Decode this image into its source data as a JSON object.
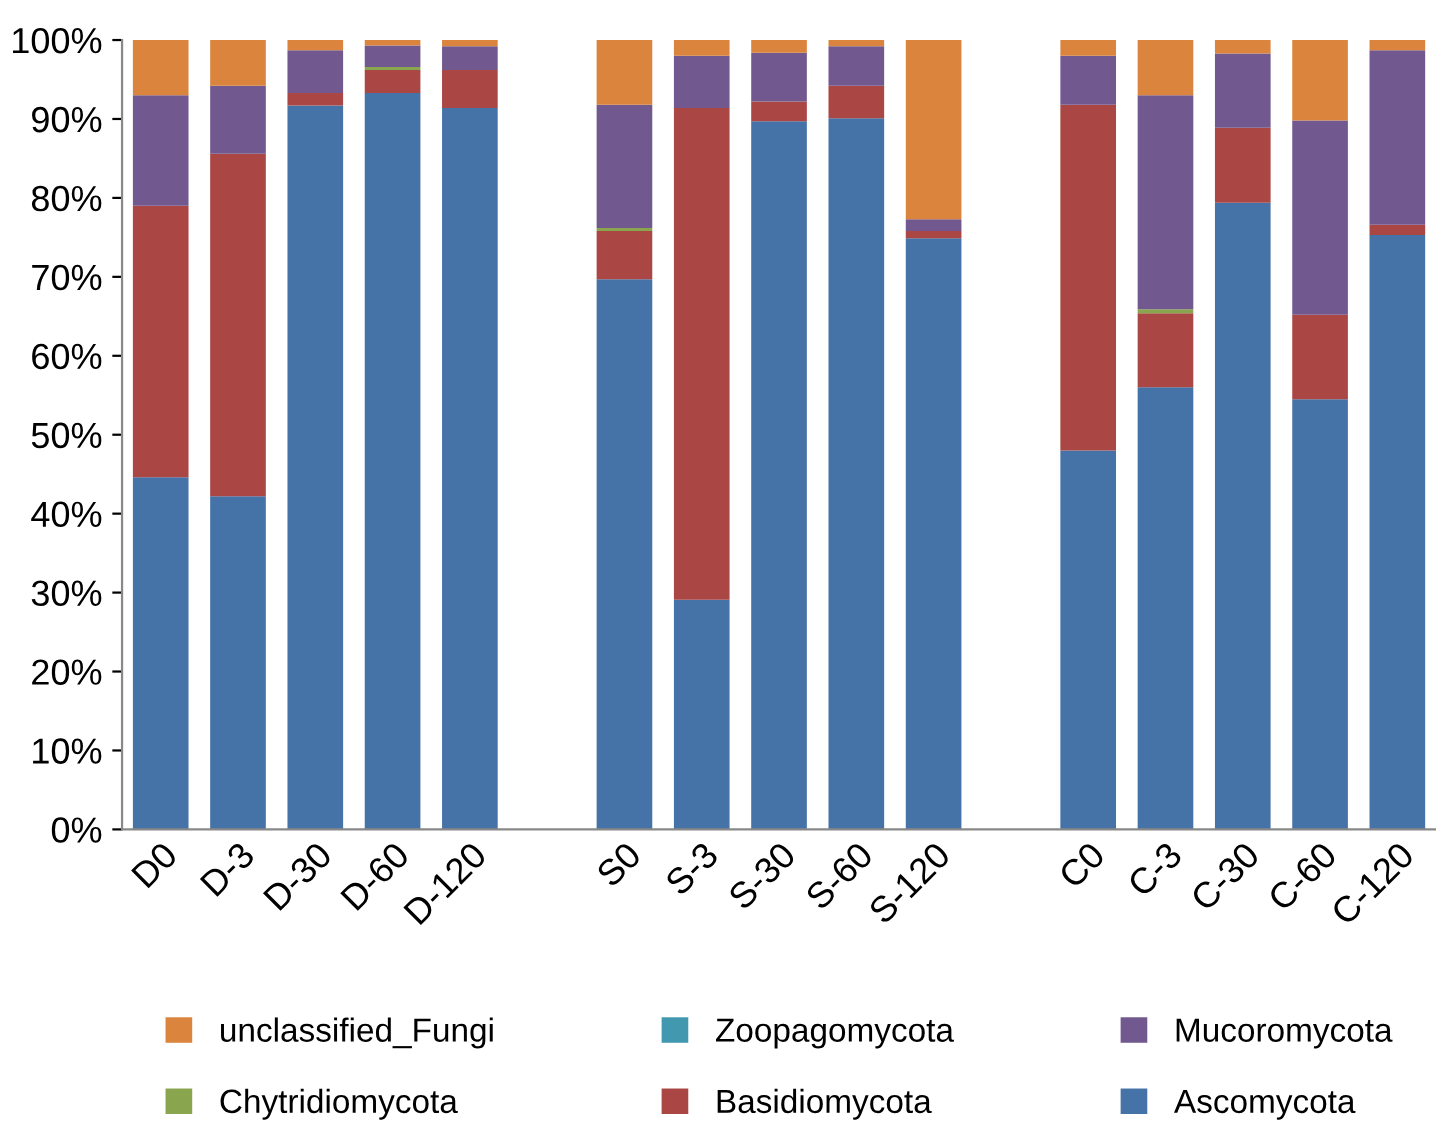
{
  "chart_data": {
    "type": "bar",
    "stacked": true,
    "legend": "bottom",
    "grid": false,
    "categories": [
      "D0",
      "D-3",
      "D-30",
      "D-60",
      "D-120",
      null,
      "S0",
      "S-3",
      "S-30",
      "S-60",
      "S-120",
      null,
      "C0",
      "C-3",
      "C-30",
      "C-60",
      "C-120"
    ],
    "series": [
      {
        "name": "Ascomycota",
        "color": "#4572a7",
        "values": [
          44.6,
          42.2,
          91.7,
          93.3,
          91.4,
          null,
          69.7,
          29.1,
          89.7,
          90.1,
          74.9,
          null,
          48,
          56,
          79.4,
          54.5,
          75.3
        ]
      },
      {
        "name": "Basidiomycota",
        "color": "#aa4643",
        "values": [
          34.4,
          43.4,
          1.6,
          2.9,
          4.8,
          null,
          6.1,
          62.3,
          2.5,
          4.1,
          0.9,
          null,
          43.8,
          9.4,
          9.5,
          10.7,
          1.3
        ]
      },
      {
        "name": "Chytridiomycota",
        "color": "#89a54e",
        "values": [
          0,
          0,
          0,
          0.4,
          0,
          null,
          0.4,
          0,
          0,
          0,
          0,
          null,
          0,
          0.5,
          0,
          0,
          0
        ]
      },
      {
        "name": "Mucoromycota",
        "color": "#71588f",
        "values": [
          14,
          8.6,
          5.4,
          2.7,
          3.0,
          null,
          15.6,
          6.6,
          6.2,
          5.0,
          1.5,
          null,
          6.2,
          27.1,
          9.4,
          24.6,
          22.1
        ]
      },
      {
        "name": "Zoopagomycota",
        "color": "#4198af",
        "values": [
          0,
          0,
          0,
          0,
          0,
          null,
          0,
          0,
          0,
          0,
          0,
          null,
          0,
          0,
          0,
          0,
          0
        ]
      },
      {
        "name": "unclassified_Fungi",
        "color": "#db843d",
        "values": [
          7,
          5.8,
          1.3,
          0.7,
          0.8,
          null,
          8.2,
          2,
          1.6,
          0.8,
          22.7,
          null,
          2,
          7,
          1.7,
          10.2,
          1.3
        ]
      }
    ],
    "ylim": [
      0,
      100
    ],
    "yticks": [
      {
        "value": 0,
        "label": "0%"
      },
      {
        "value": 10,
        "label": "10%"
      },
      {
        "value": 20,
        "label": "20%"
      },
      {
        "value": 30,
        "label": "30%"
      },
      {
        "value": 40,
        "label": "40%"
      },
      {
        "value": 50,
        "label": "50%"
      },
      {
        "value": 60,
        "label": "60%"
      },
      {
        "value": 70,
        "label": "70%"
      },
      {
        "value": 80,
        "label": "80%"
      },
      {
        "value": 90,
        "label": "90%"
      },
      {
        "value": 100,
        "label": "100%"
      }
    ]
  }
}
